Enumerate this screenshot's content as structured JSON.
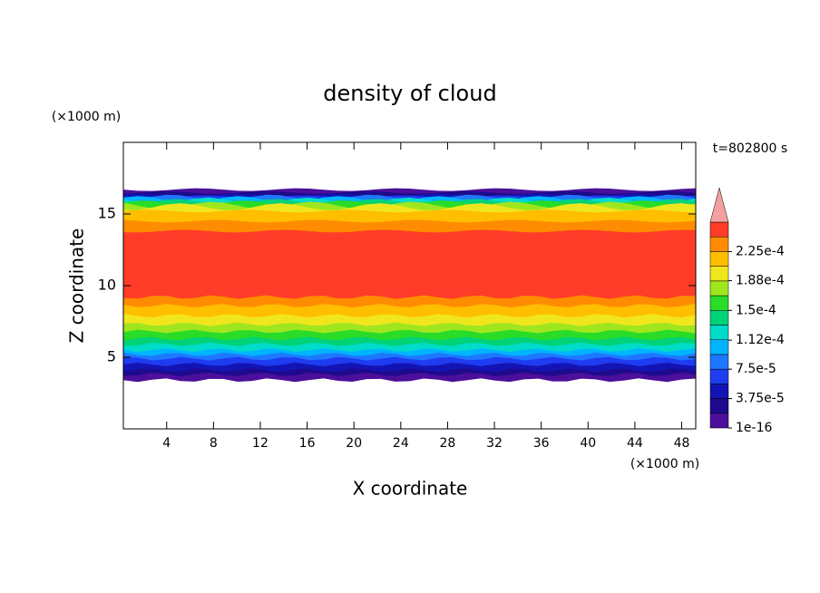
{
  "chart_data": {
    "type": "contour",
    "title": "density of cloud",
    "x_label": "X coordinate",
    "y_label": "Z coordinate",
    "x_unit": "(×1000 m)",
    "y_unit": "(×1000 m)",
    "time_label": "t=802800 s",
    "xlim": [
      0.3,
      49.2
    ],
    "ylim": [
      0,
      20
    ],
    "xticks": [
      4,
      8,
      12,
      16,
      20,
      24,
      28,
      32,
      36,
      40,
      44,
      48
    ],
    "yticks": [
      5,
      10,
      15
    ],
    "levels": [
      1e-16,
      1.875e-05,
      3.75e-05,
      5.625e-05,
      7.5e-05,
      9.375e-05,
      0.0001125,
      0.00013125,
      0.00015,
      0.00016875,
      0.0001875,
      0.00020625,
      0.000225,
      0.00024375,
      0.0002625
    ],
    "colors": [
      "#4b0f9b",
      "#1e0a8c",
      "#1414b4",
      "#1e3cf0",
      "#1e78ff",
      "#00b4ff",
      "#00dcc8",
      "#00d278",
      "#28dc28",
      "#a0e61e",
      "#f0e61e",
      "#ffbe00",
      "#ff8c00",
      "#ff3c28"
    ],
    "extend_color": "#f5a0a0",
    "cbar_ticks": [
      {
        "value": 1e-16,
        "label": "1e-16"
      },
      {
        "value": 3.75e-05,
        "label": "3.75e-5"
      },
      {
        "value": 7.5e-05,
        "label": "7.5e-5"
      },
      {
        "value": 0.000112,
        "label": "1.12e-4"
      },
      {
        "value": 0.00015,
        "label": "1.5e-4"
      },
      {
        "value": 0.000188,
        "label": "1.88e-4"
      },
      {
        "value": 0.000225,
        "label": "2.25e-4"
      }
    ]
  }
}
